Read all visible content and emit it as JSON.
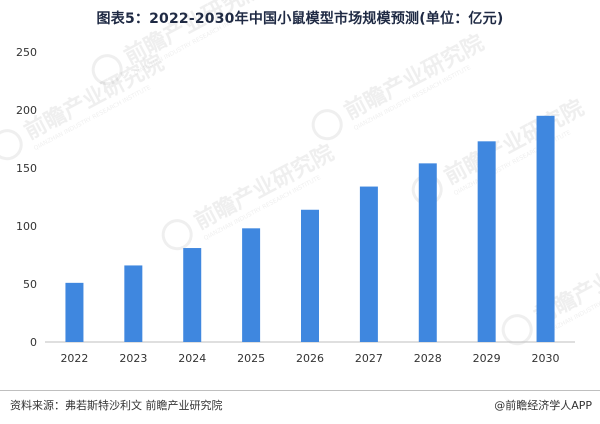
{
  "title": "图表5：2022-2030年中国小鼠模型市场规模预测(单位：亿元)",
  "chart_data": {
    "type": "bar",
    "categories": [
      "2022",
      "2023",
      "2024",
      "2025",
      "2026",
      "2027",
      "2028",
      "2029",
      "2030"
    ],
    "series": [
      {
        "values": [
          51,
          66,
          81,
          98,
          114,
          134,
          154,
          173,
          195
        ]
      }
    ],
    "y_ticks": [
      0,
      50,
      100,
      150,
      200,
      250
    ],
    "ylim": [
      0,
      250
    ],
    "xlabel": "",
    "ylabel": "",
    "grid": false,
    "bar_color": "#3f87df"
  },
  "watermark": {
    "text": "前瞻产业研究院",
    "sub": "QIANZHAN INDUSTRY RESEARCH INSTITUTE"
  },
  "footer": {
    "source": "资料来源：弗若斯特沙利文 前瞻产业研究院",
    "credit": "@前瞻经济学人APP"
  }
}
